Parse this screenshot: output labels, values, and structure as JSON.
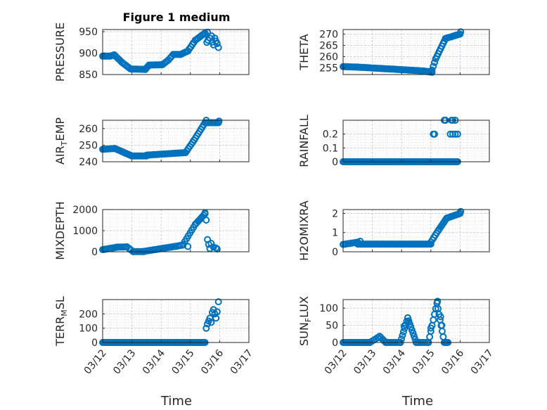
{
  "colors": {
    "marker": "#0072BD",
    "axis": "#262626",
    "grid": "#d9d9d9"
  },
  "chart_data": {
    "type": "scatter",
    "title": "Figure 1 medium",
    "xlabel": "Time",
    "marker": "open-circle",
    "grid": "on (major dashed + minor dotted)",
    "x_range_days": [
      "03/12",
      "03/17"
    ],
    "x_tick_labels": [
      "03/12",
      "03/13",
      "03/14",
      "03/15",
      "03/16",
      "03/17"
    ],
    "panels": [
      {
        "ylabel_main": "PRESSURE",
        "ylabel_sub": "",
        "ylim": [
          850,
          955
        ],
        "yticks": [
          850,
          900,
          950
        ],
        "series": [
          {
            "segments": [
              {
                "x0": "03/12 00:00",
                "x1": "03/12 06:00",
                "y0": 893,
                "y1": 893,
                "n": 8
              },
              {
                "x0": "03/12 06:00",
                "x1": "03/12 09:30",
                "y0": 893,
                "y1": 896,
                "n": 4
              },
              {
                "x0": "03/12 09:30",
                "x1": "03/12 16:00",
                "y0": 896,
                "y1": 878,
                "n": 6
              },
              {
                "x0": "03/12 16:00",
                "x1": "03/12 23:00",
                "y0": 878,
                "y1": 863,
                "n": 7
              },
              {
                "x0": "03/12 23:00",
                "x1": "03/13 11:00",
                "y0": 863,
                "y1": 862,
                "n": 13
              },
              {
                "x0": "03/13 11:00",
                "x1": "03/13 14:00",
                "y0": 862,
                "y1": 872,
                "n": 4
              },
              {
                "x0": "03/13 14:00",
                "x1": "03/14 01:00",
                "y0": 872,
                "y1": 873,
                "n": 11
              },
              {
                "x0": "03/14 01:00",
                "x1": "03/14 06:00",
                "y0": 873,
                "y1": 884,
                "n": 5
              },
              {
                "x0": "03/14 06:00",
                "x1": "03/14 10:00",
                "y0": 884,
                "y1": 897,
                "n": 4
              },
              {
                "x0": "03/14 10:00",
                "x1": "03/14 16:00",
                "y0": 897,
                "y1": 897,
                "n": 6
              },
              {
                "x0": "03/14 16:00",
                "x1": "03/14 22:00",
                "y0": 897,
                "y1": 905,
                "n": 6
              },
              {
                "x0": "03/14 22:00",
                "x1": "03/15 04:00",
                "y0": 905,
                "y1": 930,
                "n": 6
              },
              {
                "x0": "03/15 04:00",
                "x1": "03/15 12:00",
                "y0": 930,
                "y1": 947,
                "n": 8
              }
            ],
            "points": [
              {
                "x": "03/15 14:00",
                "y": 949
              },
              {
                "x": "03/15 12:30",
                "y": 944
              },
              {
                "x": "03/15 13:30",
                "y": 925
              },
              {
                "x": "03/15 14:30",
                "y": 930
              },
              {
                "x": "03/15 16:00",
                "y": 935
              },
              {
                "x": "03/15 17:30",
                "y": 940
              },
              {
                "x": "03/15 18:00",
                "y": 926
              },
              {
                "x": "03/15 19:00",
                "y": 919
              },
              {
                "x": "03/15 20:00",
                "y": 935
              },
              {
                "x": "03/15 21:00",
                "y": 928
              },
              {
                "x": "03/15 22:00",
                "y": 922
              },
              {
                "x": "03/15 23:00",
                "y": 913
              }
            ]
          }
        ]
      },
      {
        "ylabel_main": "THETA",
        "ylabel_sub": "",
        "ylim": [
          252,
          272
        ],
        "yticks": [
          255,
          260,
          265,
          270
        ],
        "series": [
          {
            "segments": [
              {
                "x0": "03/12 00:00",
                "x1": "03/12 12:00",
                "y0": 255.5,
                "y1": 255.3,
                "n": 14
              },
              {
                "x0": "03/12 12:00",
                "x1": "03/14 18:00",
                "y0": 255.3,
                "y1": 253.6,
                "n": 50
              },
              {
                "x0": "03/14 18:00",
                "x1": "03/15 01:00",
                "y0": 253.6,
                "y1": 253.0,
                "n": 8
              },
              {
                "x0": "03/15 01:00",
                "x1": "03/15 04:00",
                "y0": 254.0,
                "y1": 259.0,
                "n": 4
              },
              {
                "x0": "03/15 04:00",
                "x1": "03/15 12:00",
                "y0": 259.0,
                "y1": 268.0,
                "n": 9
              },
              {
                "x0": "03/15 12:00",
                "x1": "03/16 00:00",
                "y0": 268.0,
                "y1": 270.0,
                "n": 12
              }
            ],
            "points": [
              {
                "x": "03/16 00:30",
                "y": 271.0
              }
            ]
          }
        ]
      },
      {
        "ylabel_main": "AIR",
        "ylabel_sub": "T",
        "ylabel_rest": "EMP",
        "ylim": [
          240,
          265
        ],
        "yticks": [
          240,
          250,
          260
        ],
        "series": [
          {
            "segments": [
              {
                "x0": "03/12 00:00",
                "x1": "03/12 10:00",
                "y0": 247.5,
                "y1": 248,
                "n": 10
              },
              {
                "x0": "03/12 10:00",
                "x1": "03/13 00:00",
                "y0": 248,
                "y1": 243.5,
                "n": 14
              },
              {
                "x0": "03/13 00:00",
                "x1": "03/13 12:00",
                "y0": 243.5,
                "y1": 243.5,
                "n": 10
              },
              {
                "x0": "03/13 12:00",
                "x1": "03/14 20:00",
                "y0": 244.0,
                "y1": 245.5,
                "n": 30
              },
              {
                "x0": "03/14 20:00",
                "x1": "03/15 03:00",
                "y0": 245.5,
                "y1": 253,
                "n": 7
              },
              {
                "x0": "03/15 03:00",
                "x1": "03/15 12:00",
                "y0": 253,
                "y1": 263.5,
                "n": 9
              },
              {
                "x0": "03/15 12:00",
                "x1": "03/15 23:00",
                "y0": 263.5,
                "y1": 263.5,
                "n": 10
              }
            ],
            "points": [
              {
                "x": "03/15 13:00",
                "y": 265.0
              },
              {
                "x": "03/15 23:30",
                "y": 264.5
              }
            ]
          }
        ]
      },
      {
        "ylabel_main": "RAINFALL",
        "ylabel_sub": "",
        "ylim": [
          0,
          0.3
        ],
        "yticks": [
          0,
          0.1,
          0.2
        ],
        "series": [
          {
            "segments": [
              {
                "x0": "03/12 00:00",
                "x1": "03/15 11:00",
                "y0": 0,
                "y1": 0,
                "n": 80
              },
              {
                "x0": "03/15 11:00",
                "x1": "03/15 22:00",
                "y0": 0,
                "y1": 0,
                "n": 12
              }
            ],
            "points": [
              {
                "x": "03/15 02:00",
                "y": 0.2
              },
              {
                "x": "03/15 03:00",
                "y": 0.2
              },
              {
                "x": "03/15 11:00",
                "y": 0.3
              },
              {
                "x": "03/15 12:00",
                "y": 0.3
              },
              {
                "x": "03/15 17:00",
                "y": 0.3
              },
              {
                "x": "03/15 18:00",
                "y": 0.3
              },
              {
                "x": "03/15 20:00",
                "y": 0.3
              },
              {
                "x": "03/15 16:00",
                "y": 0.2
              },
              {
                "x": "03/15 18:00",
                "y": 0.2
              },
              {
                "x": "03/15 20:00",
                "y": 0.2
              },
              {
                "x": "03/15 22:00",
                "y": 0.2
              }
            ]
          }
        ]
      },
      {
        "ylabel_main": "MIXDEPTH",
        "ylabel_sub": "",
        "ylim": [
          0,
          2000
        ],
        "yticks": [
          0,
          1000,
          2000
        ],
        "series": [
          {
            "segments": [
              {
                "x0": "03/12 00:00",
                "x1": "03/12 12:00",
                "y0": 100,
                "y1": 220,
                "n": 12
              },
              {
                "x0": "03/12 12:00",
                "x1": "03/12 20:00",
                "y0": 220,
                "y1": 230,
                "n": 7
              },
              {
                "x0": "03/12 20:00",
                "x1": "03/13 01:00",
                "y0": 230,
                "y1": 10,
                "n": 4
              },
              {
                "x0": "03/13 01:00",
                "x1": "03/13 10:00",
                "y0": 10,
                "y1": 10,
                "n": 8
              },
              {
                "x0": "03/13 10:00",
                "x1": "03/14 12:00",
                "y0": 20,
                "y1": 260,
                "n": 22
              },
              {
                "x0": "03/14 12:00",
                "x1": "03/14 18:00",
                "y0": 260,
                "y1": 320,
                "n": 5
              },
              {
                "x0": "03/14 18:00",
                "x1": "03/15 04:00",
                "y0": 350,
                "y1": 1300,
                "n": 8
              },
              {
                "x0": "03/15 04:00",
                "x1": "03/15 12:00",
                "y0": 1300,
                "y1": 1800,
                "n": 8
              }
            ],
            "points": [
              {
                "x": "03/14 22:00",
                "y": 250
              },
              {
                "x": "03/15 12:00",
                "y": 1850
              },
              {
                "x": "03/15 13:00",
                "y": 1500
              },
              {
                "x": "03/15 14:00",
                "y": 580
              },
              {
                "x": "03/15 15:00",
                "y": 350
              },
              {
                "x": "03/15 16:00",
                "y": 150
              },
              {
                "x": "03/15 17:00",
                "y": 400
              },
              {
                "x": "03/15 19:00",
                "y": 220
              },
              {
                "x": "03/15 21:00",
                "y": 180
              },
              {
                "x": "03/15 22:00",
                "y": 130
              }
            ]
          }
        ]
      },
      {
        "ylabel_main": "H2OMIXRA",
        "ylabel_sub": "",
        "ylim": [
          0,
          2.2
        ],
        "yticks": [
          0,
          1,
          2
        ],
        "series": [
          {
            "segments": [
              {
                "x0": "03/12 00:00",
                "x1": "03/12 12:00",
                "y0": 0.38,
                "y1": 0.5,
                "n": 10
              },
              {
                "x0": "03/12 12:00",
                "x1": "03/15 00:00",
                "y0": 0.4,
                "y1": 0.4,
                "n": 60
              },
              {
                "x0": "03/15 00:00",
                "x1": "03/15 06:00",
                "y0": 0.5,
                "y1": 1.1,
                "n": 6
              },
              {
                "x0": "03/15 06:00",
                "x1": "03/15 13:00",
                "y0": 1.1,
                "y1": 1.75,
                "n": 8
              },
              {
                "x0": "03/15 13:00",
                "x1": "03/16 00:00",
                "y0": 1.75,
                "y1": 2.0,
                "n": 10
              }
            ],
            "points": [
              {
                "x": "03/12 14:00",
                "y": 0.55
              },
              {
                "x": "03/16 00:30",
                "y": 2.1
              }
            ]
          }
        ]
      },
      {
        "ylabel_main": "TERR",
        "ylabel_sub": "M",
        "ylabel_rest": "SL",
        "ylim": [
          0,
          300
        ],
        "yticks": [
          0,
          100,
          200
        ],
        "series": [
          {
            "segments": [
              {
                "x0": "03/12 00:00",
                "x1": "03/15 12:00",
                "y0": 0,
                "y1": 0,
                "n": 84
              }
            ],
            "points": [
              {
                "x": "03/15 13:00",
                "y": 100
              },
              {
                "x": "03/15 14:00",
                "y": 130
              },
              {
                "x": "03/15 15:00",
                "y": 150
              },
              {
                "x": "03/15 16:00",
                "y": 170
              },
              {
                "x": "03/15 17:00",
                "y": 140
              },
              {
                "x": "03/15 18:00",
                "y": 210
              },
              {
                "x": "03/15 19:00",
                "y": 230
              },
              {
                "x": "03/15 20:00",
                "y": 200
              },
              {
                "x": "03/15 21:00",
                "y": 170
              },
              {
                "x": "03/15 22:00",
                "y": 215
              },
              {
                "x": "03/15 23:00",
                "y": 285
              }
            ]
          }
        ]
      },
      {
        "ylabel_main": "SUN",
        "ylabel_sub": "F",
        "ylabel_rest": "LUX",
        "ylim": [
          0,
          125
        ],
        "yticks": [
          0,
          50,
          100
        ],
        "series": [
          {
            "segments": [
              {
                "x0": "03/12 00:00",
                "x1": "03/12 22:00",
                "y0": 0,
                "y1": 0,
                "n": 22
              },
              {
                "x0": "03/12 22:00",
                "x1": "03/13 06:00",
                "y0": 0,
                "y1": 18,
                "n": 6
              },
              {
                "x0": "03/13 06:00",
                "x1": "03/13 11:00",
                "y0": 18,
                "y1": 0,
                "n": 5
              },
              {
                "x0": "03/13 11:00",
                "x1": "03/13 23:00",
                "y0": 0,
                "y1": 0,
                "n": 10
              },
              {
                "x0": "03/13 23:00",
                "x1": "03/14 05:00",
                "y0": 0,
                "y1": 72,
                "n": 8
              },
              {
                "x0": "03/14 05:00",
                "x1": "03/14 12:00",
                "y0": 72,
                "y1": 0,
                "n": 9
              },
              {
                "x0": "03/14 12:00",
                "x1": "03/14 22:00",
                "y0": 0,
                "y1": 0,
                "n": 8
              },
              {
                "x0": "03/14 22:00",
                "x1": "03/15 05:00",
                "y0": 0,
                "y1": 115,
                "n": 8
              },
              {
                "x0": "03/15 05:00",
                "x1": "03/15 11:00",
                "y0": 115,
                "y1": 0,
                "n": 8
              },
              {
                "x0": "03/15 11:00",
                "x1": "03/15 14:00",
                "y0": 0,
                "y1": 0,
                "n": 4
              }
            ],
            "points": [
              {
                "x": "03/13 04:30",
                "y": 14
              },
              {
                "x": "03/14 02:00",
                "y": 48
              },
              {
                "x": "03/14 05:30",
                "y": 60
              },
              {
                "x": "03/15 00:00",
                "y": 42
              },
              {
                "x": "03/15 05:30",
                "y": 120
              },
              {
                "x": "03/15 08:00",
                "y": 75
              },
              {
                "x": "03/15 09:00",
                "y": 50
              }
            ]
          }
        ]
      }
    ]
  }
}
